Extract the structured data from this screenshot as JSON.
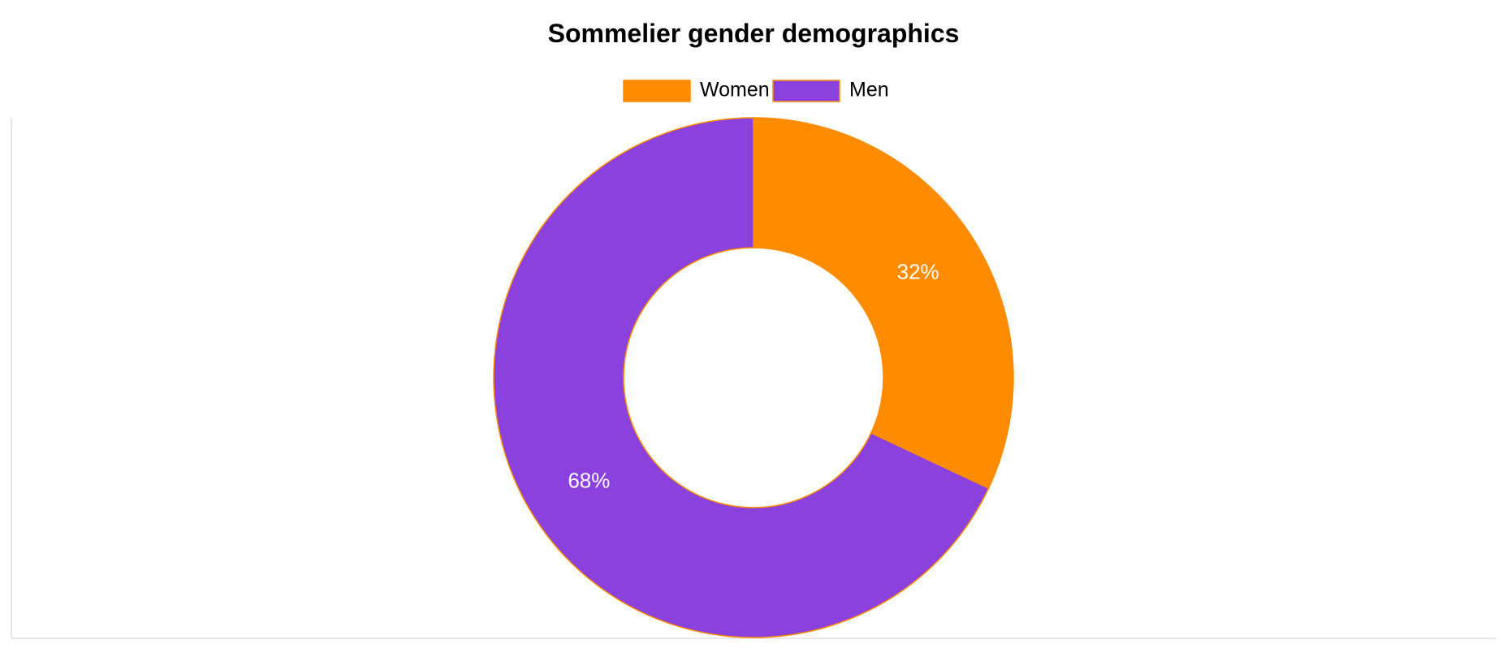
{
  "chart_data": {
    "type": "pie",
    "variant": "donut",
    "title": "Sommelier gender demographics",
    "legend_position": "top",
    "slices": [
      {
        "label": "Women",
        "value": 32,
        "display": "32%",
        "color": "#FF8C00"
      },
      {
        "label": "Men",
        "value": 68,
        "display": "68%",
        "color": "#8A41DE"
      }
    ],
    "slice_border_color": "#FF8C00",
    "axis_line_color": "#DDDDDD"
  }
}
